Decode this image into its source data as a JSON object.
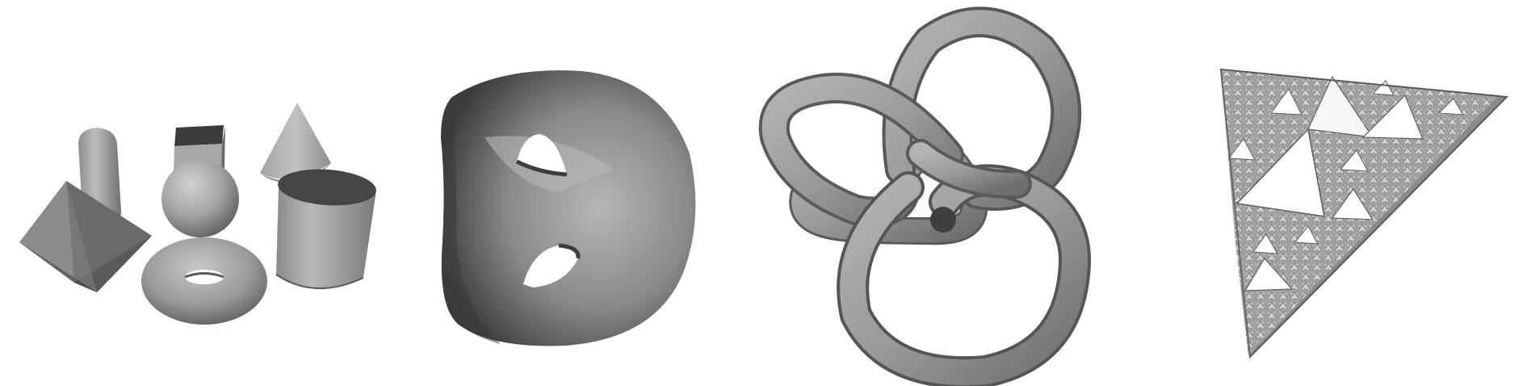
{
  "panels": [
    {
      "subject": "primitives"
    },
    {
      "subject": "genus-two-surface"
    },
    {
      "subject": "knot"
    },
    {
      "subject": "sierpinski-tetrahedron"
    }
  ],
  "colors": {
    "background": "#ffffff",
    "surface_light": "#c4c4c4",
    "surface_mid": "#8f8f8f",
    "surface_dark": "#464646",
    "edge": "#5c5c5c"
  }
}
